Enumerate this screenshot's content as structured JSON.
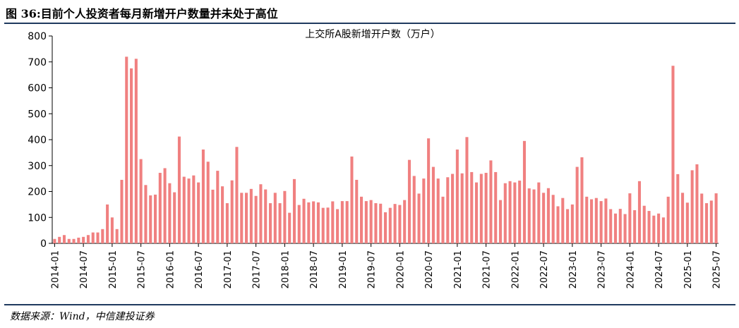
{
  "header": {
    "figure_title": "图 36:目前个人投资者每月新增开户数量并未处于高位"
  },
  "footer": {
    "source": "数据来源：Wind，中信建投证券"
  },
  "colors": {
    "bar": "#f08080",
    "rule": "#1f3a5f",
    "axis": "#000000"
  },
  "chart_data": {
    "type": "bar",
    "title": "上交所A股新增开户数（万户）",
    "xlabel": "",
    "ylabel": "",
    "ylim": [
      0,
      800
    ],
    "yticks": [
      0,
      100,
      200,
      300,
      400,
      500,
      600,
      700,
      800
    ],
    "grid": false,
    "xtick_labels": [
      "2014-01",
      "2014-07",
      "2015-01",
      "2015-07",
      "2016-01",
      "2016-07",
      "2017-01",
      "2017-07",
      "2018-01",
      "2018-07",
      "2019-01",
      "2019-07",
      "2020-01",
      "2020-07",
      "2021-01",
      "2021-07",
      "2022-01",
      "2022-07",
      "2023-01",
      "2023-07",
      "2024-01",
      "2024-07",
      "2025-01",
      "2025-07"
    ],
    "start_month": "2014-01",
    "values": [
      17,
      25,
      32,
      17,
      17,
      22,
      25,
      32,
      42,
      42,
      55,
      150,
      100,
      55,
      245,
      720,
      675,
      712,
      325,
      225,
      185,
      188,
      272,
      290,
      232,
      197,
      412,
      257,
      250,
      262,
      235,
      362,
      315,
      207,
      280,
      220,
      155,
      243,
      372,
      195,
      195,
      210,
      183,
      228,
      208,
      155,
      195,
      155,
      202,
      118,
      248,
      148,
      172,
      158,
      162,
      158,
      137,
      138,
      162,
      132,
      163,
      163,
      335,
      245,
      180,
      163,
      167,
      155,
      153,
      120,
      137,
      152,
      148,
      167,
      322,
      260,
      192,
      250,
      405,
      295,
      250,
      180,
      255,
      268,
      362,
      270,
      410,
      275,
      235,
      268,
      272,
      320,
      275,
      167,
      232,
      240,
      235,
      242,
      395,
      212,
      208,
      235,
      195,
      213,
      187,
      143,
      175,
      132,
      150,
      295,
      332,
      180,
      170,
      175,
      163,
      173,
      132,
      115,
      133,
      113,
      193,
      128,
      240,
      145,
      125,
      107,
      115,
      100,
      180,
      685,
      267,
      195,
      157,
      282,
      305,
      192,
      155,
      165,
      193
    ]
  }
}
